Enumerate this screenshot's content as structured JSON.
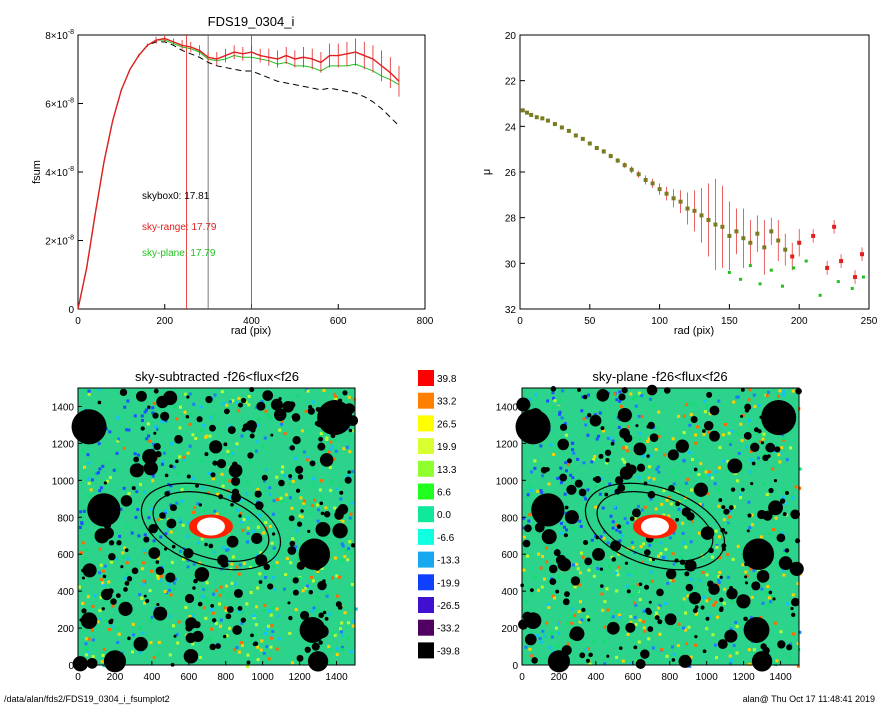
{
  "footer": {
    "path": "/data/alan/fds2/FDS19_0304_i_fsumplot2",
    "stamp": "alan@  Thu Oct 17 11:48:41 2019"
  },
  "colors": {
    "sky_range": "#e02020",
    "sky_plane": "#20c020",
    "skybox0": "#000000",
    "image_bg": "#2cd38a"
  },
  "chart_data": [
    {
      "type": "line",
      "title": "FDS19_0304_i",
      "xlabel": "rad (pix)",
      "ylabel": "fsum",
      "xlim": [
        0,
        800
      ],
      "ylim": [
        0,
        8
      ],
      "y_unit_power": "-8",
      "xticks": [
        0,
        200,
        400,
        600,
        800
      ],
      "yticks": [
        0,
        2,
        4,
        6,
        8
      ],
      "vlines": [
        250,
        300,
        400
      ],
      "annotations": [
        {
          "text": "skybox0: 17.81",
          "color": "#000000"
        },
        {
          "text": "sky-range: 17.79",
          "color": "#e02020"
        },
        {
          "text": "sky-plane: 17.79",
          "color": "#20c020"
        }
      ],
      "series": [
        {
          "color": "#e02020",
          "x": [
            0,
            20,
            40,
            60,
            80,
            100,
            120,
            140,
            160,
            180,
            200,
            220,
            240,
            260,
            280,
            300,
            320,
            340,
            360,
            380,
            400,
            420,
            440,
            460,
            480,
            500,
            520,
            540,
            560,
            580,
            600,
            620,
            640,
            660,
            680,
            700,
            720,
            740
          ],
          "y": [
            0,
            1.2,
            2.8,
            4.3,
            5.5,
            6.4,
            7.0,
            7.4,
            7.7,
            7.85,
            7.9,
            7.8,
            7.7,
            7.65,
            7.55,
            7.35,
            7.3,
            7.4,
            7.5,
            7.45,
            7.5,
            7.4,
            7.35,
            7.3,
            7.4,
            7.3,
            7.35,
            7.3,
            7.2,
            7.4,
            7.4,
            7.45,
            7.5,
            7.4,
            7.3,
            7.1,
            6.9,
            6.65
          ],
          "errors": [
            0,
            0,
            0,
            0,
            0,
            0,
            0,
            0.05,
            0.05,
            0.1,
            0.1,
            0.1,
            0.15,
            0.15,
            0.15,
            0.15,
            0.2,
            0.2,
            0.2,
            0.2,
            0.2,
            0.2,
            0.25,
            0.25,
            0.25,
            0.25,
            0.3,
            0.3,
            0.3,
            0.35,
            0.35,
            0.35,
            0.4,
            0.4,
            0.4,
            0.45,
            0.45,
            0.45
          ]
        },
        {
          "color": "#20c020",
          "x": [
            0,
            20,
            40,
            60,
            80,
            100,
            120,
            140,
            160,
            180,
            200,
            220,
            240,
            260,
            280,
            300,
            320,
            340,
            360,
            380,
            400,
            420,
            440,
            460,
            480,
            500,
            520,
            540,
            560,
            580,
            600,
            620,
            640,
            660,
            680,
            700,
            720,
            740
          ],
          "y": [
            0,
            1.2,
            2.8,
            4.3,
            5.5,
            6.4,
            7.0,
            7.4,
            7.7,
            7.85,
            7.85,
            7.75,
            7.65,
            7.6,
            7.5,
            7.3,
            7.25,
            7.3,
            7.4,
            7.35,
            7.35,
            7.3,
            7.25,
            7.15,
            7.2,
            7.1,
            7.1,
            7.05,
            6.95,
            7.1,
            7.1,
            7.1,
            7.15,
            7.05,
            6.95,
            6.8,
            6.7,
            6.55
          ]
        },
        {
          "color": "#000000",
          "dashed": true,
          "x": [
            0,
            20,
            40,
            60,
            80,
            100,
            120,
            140,
            160,
            180,
            200,
            220,
            240,
            260,
            280,
            300,
            320,
            340,
            360,
            380,
            400,
            420,
            440,
            460,
            480,
            500,
            520,
            540,
            560,
            580,
            600,
            620,
            640,
            660,
            680,
            700,
            720,
            740
          ],
          "y": [
            0,
            1.2,
            2.8,
            4.3,
            5.5,
            6.4,
            7.0,
            7.4,
            7.7,
            7.8,
            7.8,
            7.7,
            7.55,
            7.45,
            7.35,
            7.2,
            7.1,
            7.05,
            7.0,
            6.95,
            6.95,
            6.85,
            6.75,
            6.65,
            6.6,
            6.55,
            6.5,
            6.45,
            6.4,
            6.45,
            6.4,
            6.35,
            6.3,
            6.2,
            6.05,
            5.85,
            5.6,
            5.35
          ]
        }
      ]
    },
    {
      "type": "scatter",
      "title": "",
      "xlabel": "rad (pix)",
      "ylabel": "μ",
      "xlim": [
        0,
        250
      ],
      "ylim": [
        32,
        20
      ],
      "xticks": [
        0,
        50,
        100,
        150,
        200,
        250
      ],
      "yticks": [
        20,
        22,
        24,
        26,
        28,
        30,
        32
      ],
      "series": [
        {
          "color": "#e02020",
          "x": [
            2,
            5,
            8,
            12,
            16,
            20,
            25,
            30,
            35,
            40,
            45,
            50,
            55,
            60,
            65,
            70,
            75,
            80,
            85,
            90,
            95,
            100,
            105,
            110,
            115,
            120,
            125,
            130,
            135,
            140,
            145,
            150,
            155,
            160,
            165,
            170,
            175,
            180,
            185,
            190,
            195,
            200,
            210,
            220,
            225,
            230,
            240,
            245
          ],
          "y": [
            23.3,
            23.4,
            23.5,
            23.6,
            23.65,
            23.75,
            23.9,
            24.05,
            24.2,
            24.4,
            24.55,
            24.75,
            24.95,
            25.1,
            25.3,
            25.5,
            25.7,
            25.9,
            26.1,
            26.35,
            26.5,
            26.75,
            26.95,
            27.15,
            27.3,
            27.6,
            27.7,
            27.9,
            28.1,
            28.3,
            28.4,
            28.8,
            28.6,
            28.9,
            29.1,
            28.7,
            29.3,
            28.6,
            29.0,
            29.4,
            29.7,
            29.1,
            28.8,
            30.2,
            28.4,
            29.9,
            30.6,
            29.6
          ],
          "errors": [
            0.05,
            0.05,
            0.05,
            0.05,
            0.05,
            0.05,
            0.05,
            0.05,
            0.05,
            0.05,
            0.06,
            0.08,
            0.08,
            0.1,
            0.1,
            0.1,
            0.12,
            0.15,
            0.15,
            0.2,
            0.2,
            0.25,
            0.3,
            0.4,
            0.5,
            0.7,
            0.9,
            1.2,
            1.6,
            2.0,
            1.8,
            1.5,
            1.0,
            1.3,
            1.0,
            0.8,
            1.2,
            0.6,
            0.9,
            0.7,
            0.6,
            0.6,
            0.3,
            0.3,
            0.3,
            0.3,
            0.3,
            0.3
          ]
        },
        {
          "color": "#20c020",
          "x": [
            150,
            158,
            165,
            172,
            180,
            188,
            196,
            205,
            215,
            228,
            238,
            246
          ],
          "y": [
            30.4,
            30.7,
            30.1,
            30.9,
            30.3,
            31.0,
            30.2,
            29.9,
            31.4,
            30.8,
            31.1,
            30.6
          ]
        }
      ]
    },
    {
      "type": "heatmap",
      "title": "sky-subtracted -f26<flux<f26",
      "xlim": [
        0,
        1500
      ],
      "ylim": [
        0,
        1500
      ],
      "xticks": [
        0,
        200,
        400,
        600,
        800,
        1000,
        1200,
        1400
      ],
      "yticks": [
        0,
        200,
        400,
        600,
        800,
        1000,
        1200,
        1400
      ]
    },
    {
      "type": "heatmap",
      "title": "sky-plane -f26<flux<f26",
      "xlim": [
        0,
        1500
      ],
      "ylim": [
        0,
        1500
      ],
      "xticks": [
        0,
        200,
        400,
        600,
        800,
        1000,
        1200,
        1400
      ],
      "yticks": [
        0,
        200,
        400,
        600,
        800,
        1000,
        1200,
        1400
      ]
    }
  ],
  "colorbar": {
    "labels": [
      "39.8",
      "33.2",
      "26.5",
      "19.9",
      "13.3",
      "6.6",
      "0.0",
      "-6.6",
      "-13.3",
      "-19.9",
      "-26.5",
      "-33.2",
      "-39.8"
    ],
    "colors": [
      "#ff0000",
      "#ff8000",
      "#ffff00",
      "#d8ff30",
      "#90ff30",
      "#20ff20",
      "#10e89a",
      "#10ffe0",
      "#18a8f0",
      "#1040ff",
      "#4010d0",
      "#500060",
      "#000000"
    ]
  }
}
